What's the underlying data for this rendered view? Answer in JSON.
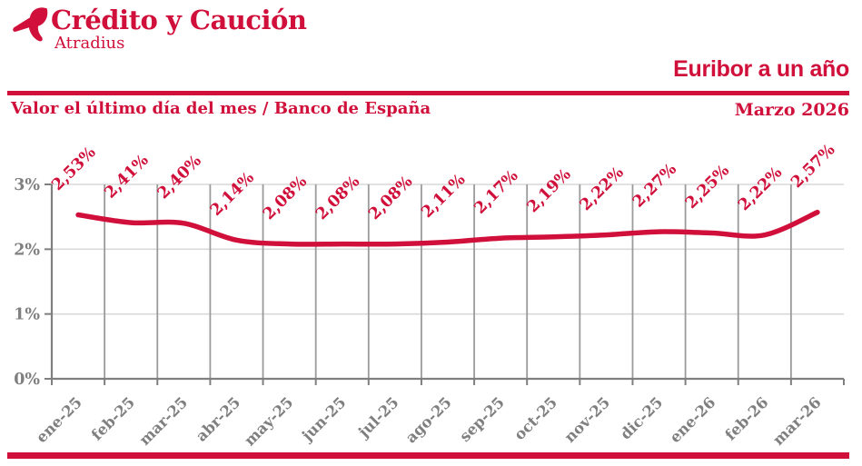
{
  "header": {
    "logo_title": "Crédito y Caución",
    "logo_subtitle": "Atradius",
    "chart_title": "Euribor a un año",
    "period": "Marzo 2026"
  },
  "subtitle": "Valor el último día del mes / Banco de España",
  "colors": {
    "brand_red": "#D0103A",
    "axis_gray": "#7F7F7F",
    "grid_vertical": "#9B9B9B",
    "grid_horizontal": "#D9D9D9"
  },
  "chart_data": {
    "type": "line",
    "title": "Euribor a un año",
    "subtitle": "Valor el último día del mes / Banco de España",
    "categories": [
      "ene-25",
      "feb-25",
      "mar-25",
      "abr-25",
      "may-25",
      "jun-25",
      "jul-25",
      "ago-25",
      "sep-25",
      "oct-25",
      "nov-25",
      "dic-25",
      "ene-26",
      "feb-26",
      "mar-26"
    ],
    "values": [
      2.53,
      2.41,
      2.4,
      2.14,
      2.08,
      2.08,
      2.08,
      2.11,
      2.17,
      2.19,
      2.22,
      2.27,
      2.25,
      2.22,
      2.57
    ],
    "value_labels": [
      "2,53%",
      "2,41%",
      "2,40%",
      "2,14%",
      "2,08%",
      "2,08%",
      "2,08%",
      "2,11%",
      "2,17%",
      "2,19%",
      "2,22%",
      "2,27%",
      "2,25%",
      "2,22%",
      "2,57%"
    ],
    "yticks": [
      {
        "v": 0,
        "label": "0%"
      },
      {
        "v": 1,
        "label": "1%"
      },
      {
        "v": 2,
        "label": "2%"
      },
      {
        "v": 3,
        "label": "3%"
      }
    ],
    "ylim": [
      0,
      3
    ],
    "grid": true,
    "legend": false,
    "line_color": "#D0103A",
    "label_rotation_deg": -45
  }
}
